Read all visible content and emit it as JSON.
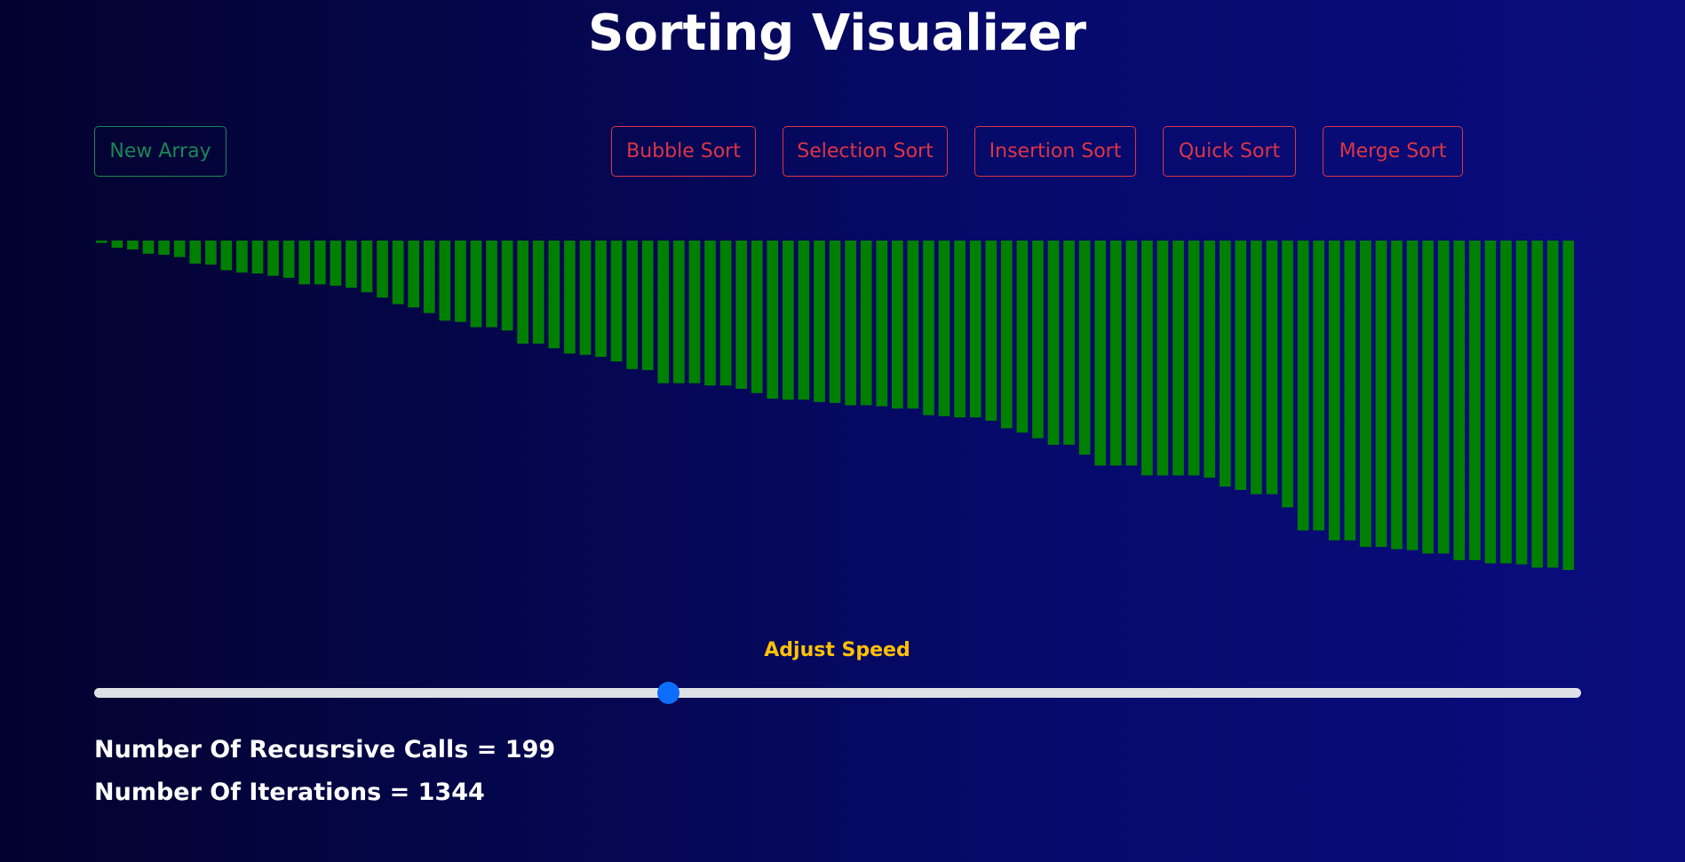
{
  "title": "Sorting Visualizer",
  "buttons": {
    "new_array": "New Array",
    "bubble_sort": "Bubble Sort",
    "selection_sort": "Selection Sort",
    "insertion_sort": "Insertion Sort",
    "quick_sort": "Quick Sort",
    "merge_sort": "Merge Sort"
  },
  "colors": {
    "bar": "#008000",
    "new_array_button": "#198754",
    "sort_buttons": "#dc3545",
    "speed_label": "#ffc107",
    "slider_thumb": "#0d6efd"
  },
  "speed": {
    "label": "Adjust Speed",
    "value_fraction": 0.385
  },
  "stats": {
    "recursive_calls_label": "Number Of Recusrsive Calls = ",
    "recursive_calls": "199",
    "iterations_label": "Number Of Iterations = ",
    "iterations": "1344"
  },
  "array": {
    "max_value": 1000,
    "values": [
      7,
      22,
      27,
      40,
      43,
      50,
      70,
      73,
      90,
      97,
      100,
      107,
      113,
      133,
      133,
      137,
      143,
      157,
      173,
      193,
      203,
      220,
      243,
      247,
      263,
      263,
      273,
      313,
      313,
      327,
      343,
      347,
      353,
      367,
      390,
      393,
      433,
      433,
      433,
      440,
      440,
      450,
      463,
      480,
      483,
      483,
      490,
      493,
      500,
      500,
      503,
      510,
      510,
      530,
      533,
      537,
      537,
      547,
      570,
      583,
      600,
      620,
      620,
      650,
      683,
      683,
      683,
      713,
      713,
      713,
      713,
      720,
      747,
      757,
      770,
      770,
      810,
      880,
      880,
      910,
      910,
      930,
      930,
      937,
      940,
      950,
      950,
      970,
      970,
      980,
      980,
      983,
      993,
      993,
      1000
    ]
  }
}
